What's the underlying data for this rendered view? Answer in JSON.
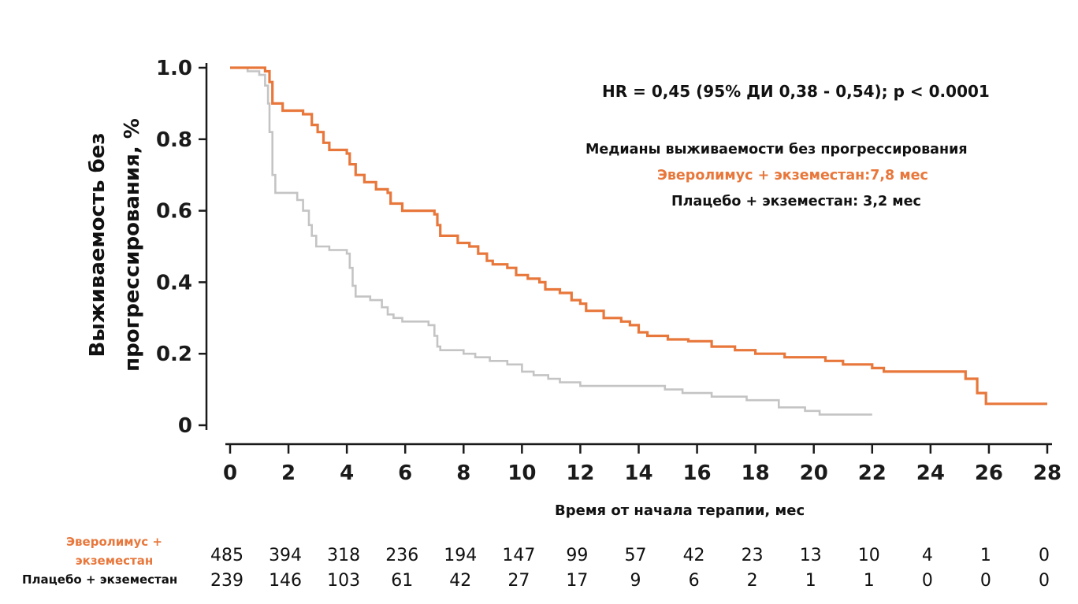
{
  "colors": {
    "everolimus": "#e8773b",
    "placebo": "#c4c4c4",
    "axis": "#1a1a1a",
    "text": "#111111"
  },
  "annotations": {
    "hr": "HR = 0,45 (95% ДИ 0,38 - 0,54); p < 0.0001",
    "median_title": "Медианы выживаемости без прогрессирования",
    "median_everolimus": "Эверолимус + экземестан:7,8 мес",
    "median_placebo": "Плацебо + экземестан: 3,2 мес"
  },
  "risk_table": {
    "everolimus_label": "Эверолимус + экземестан",
    "placebo_label": "Плацебо + экземестан",
    "everolimus": [
      "485",
      "394",
      "318",
      "236",
      "194",
      "147",
      "99",
      "57",
      "42",
      "23",
      "13",
      "10",
      "4",
      "1",
      "0"
    ],
    "placebo": [
      "239",
      "146",
      "103",
      "61",
      "42",
      "27",
      "17",
      "9",
      "6",
      "2",
      "1",
      "1",
      "0",
      "0",
      "0"
    ]
  },
  "chart_data": {
    "type": "line",
    "step": true,
    "xlabel": "Время от начала терапии, мес",
    "ylabel_lines": [
      "Выживаемость без",
      "прогрессирования, %"
    ],
    "xlim": [
      0,
      28
    ],
    "ylim": [
      0,
      1
    ],
    "x_ticks": [
      0,
      2,
      4,
      6,
      8,
      10,
      12,
      14,
      16,
      18,
      20,
      22,
      24,
      26,
      28
    ],
    "x_tick_labels": [
      "0",
      "2",
      "4",
      "6",
      "8",
      "10",
      "12",
      "14",
      "16",
      "18",
      "20",
      "22",
      "24",
      "26",
      "28"
    ],
    "y_ticks": [
      0,
      0.2,
      0.4,
      0.6,
      0.8,
      1.0
    ],
    "y_tick_labels": [
      "0",
      "0.2",
      "0.4",
      "0.6",
      "0.8",
      "1.0"
    ],
    "grid": false,
    "legend": "none",
    "series": [
      {
        "name": "Эверолимус + экземестан",
        "color": "#e8773b",
        "points": [
          [
            0,
            1.0
          ],
          [
            1.2,
            0.99
          ],
          [
            1.35,
            0.96
          ],
          [
            1.45,
            0.9
          ],
          [
            1.8,
            0.88
          ],
          [
            2.5,
            0.87
          ],
          [
            2.8,
            0.84
          ],
          [
            3.0,
            0.82
          ],
          [
            3.2,
            0.79
          ],
          [
            3.4,
            0.77
          ],
          [
            4.0,
            0.76
          ],
          [
            4.1,
            0.73
          ],
          [
            4.3,
            0.7
          ],
          [
            4.6,
            0.68
          ],
          [
            5.0,
            0.66
          ],
          [
            5.4,
            0.65
          ],
          [
            5.5,
            0.62
          ],
          [
            5.9,
            0.6
          ],
          [
            7.0,
            0.59
          ],
          [
            7.1,
            0.56
          ],
          [
            7.2,
            0.53
          ],
          [
            7.8,
            0.51
          ],
          [
            8.2,
            0.5
          ],
          [
            8.5,
            0.48
          ],
          [
            8.8,
            0.46
          ],
          [
            9.0,
            0.45
          ],
          [
            9.5,
            0.44
          ],
          [
            9.8,
            0.42
          ],
          [
            10.2,
            0.41
          ],
          [
            10.6,
            0.4
          ],
          [
            10.8,
            0.38
          ],
          [
            11.3,
            0.37
          ],
          [
            11.7,
            0.35
          ],
          [
            12.0,
            0.34
          ],
          [
            12.2,
            0.32
          ],
          [
            12.8,
            0.3
          ],
          [
            13.4,
            0.29
          ],
          [
            13.7,
            0.28
          ],
          [
            14.0,
            0.26
          ],
          [
            14.3,
            0.25
          ],
          [
            15.0,
            0.24
          ],
          [
            15.7,
            0.235
          ],
          [
            16.5,
            0.22
          ],
          [
            17.3,
            0.21
          ],
          [
            18.0,
            0.2
          ],
          [
            19.0,
            0.19
          ],
          [
            20.4,
            0.18
          ],
          [
            21.0,
            0.17
          ],
          [
            22.0,
            0.16
          ],
          [
            22.4,
            0.15
          ],
          [
            25.2,
            0.13
          ],
          [
            25.6,
            0.09
          ],
          [
            25.9,
            0.06
          ],
          [
            28.0,
            0.06
          ]
        ]
      },
      {
        "name": "Плацебо + экземестан",
        "color": "#c4c4c4",
        "points": [
          [
            0,
            1.0
          ],
          [
            0.6,
            0.99
          ],
          [
            1.0,
            0.98
          ],
          [
            1.2,
            0.95
          ],
          [
            1.3,
            0.9
          ],
          [
            1.35,
            0.82
          ],
          [
            1.45,
            0.7
          ],
          [
            1.55,
            0.65
          ],
          [
            2.3,
            0.63
          ],
          [
            2.5,
            0.6
          ],
          [
            2.7,
            0.56
          ],
          [
            2.8,
            0.53
          ],
          [
            2.95,
            0.5
          ],
          [
            3.4,
            0.49
          ],
          [
            4.0,
            0.48
          ],
          [
            4.1,
            0.44
          ],
          [
            4.2,
            0.39
          ],
          [
            4.3,
            0.36
          ],
          [
            4.8,
            0.35
          ],
          [
            5.2,
            0.33
          ],
          [
            5.4,
            0.31
          ],
          [
            5.6,
            0.3
          ],
          [
            5.9,
            0.29
          ],
          [
            6.8,
            0.28
          ],
          [
            7.0,
            0.25
          ],
          [
            7.1,
            0.22
          ],
          [
            7.2,
            0.21
          ],
          [
            8.0,
            0.2
          ],
          [
            8.4,
            0.19
          ],
          [
            8.9,
            0.18
          ],
          [
            9.5,
            0.17
          ],
          [
            10.0,
            0.15
          ],
          [
            10.4,
            0.14
          ],
          [
            10.9,
            0.13
          ],
          [
            11.3,
            0.12
          ],
          [
            12.0,
            0.11
          ],
          [
            13.2,
            0.11
          ],
          [
            14.9,
            0.1
          ],
          [
            15.5,
            0.09
          ],
          [
            16.5,
            0.08
          ],
          [
            17.7,
            0.07
          ],
          [
            18.8,
            0.05
          ],
          [
            19.7,
            0.04
          ],
          [
            20.2,
            0.03
          ],
          [
            22.0,
            0.03
          ]
        ]
      }
    ]
  }
}
